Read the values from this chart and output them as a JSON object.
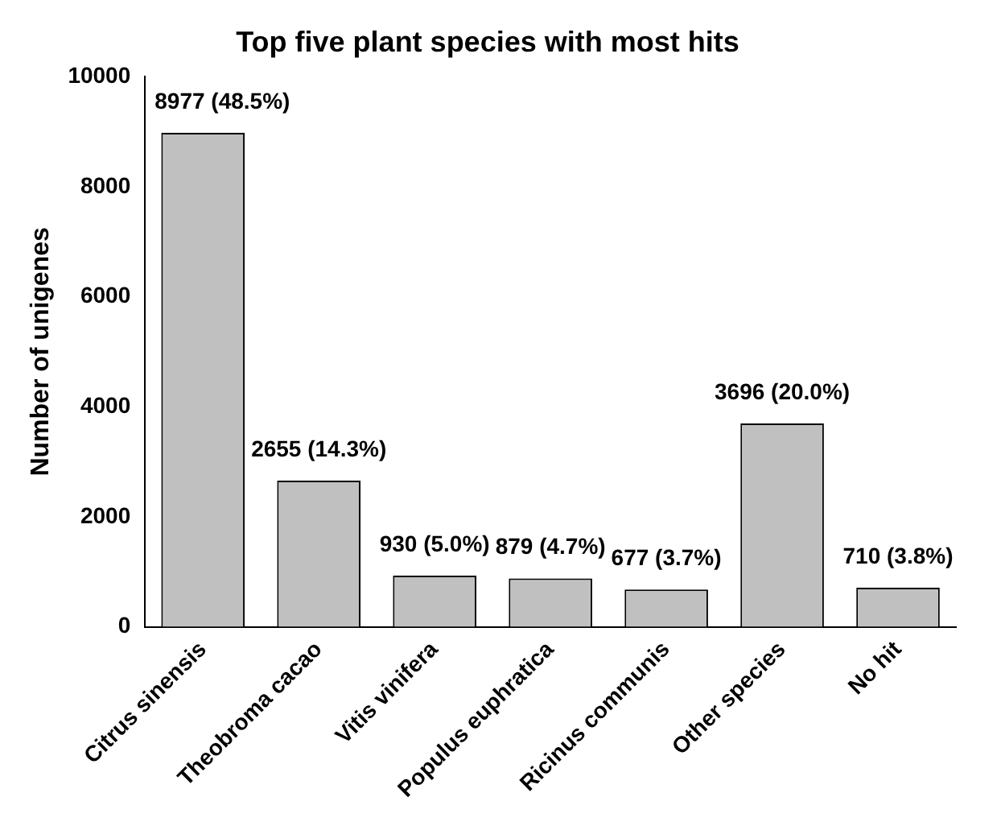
{
  "chart_data": {
    "type": "bar",
    "title": "Top five plant species with most hits",
    "ylabel": "Number of unigenes",
    "categories": [
      "Citrus sinensis",
      "Theobroma cacao",
      "Vitis vinifera",
      "Populus euphratica",
      "Ricinus communis",
      "Other species",
      "No hit"
    ],
    "values": [
      8977,
      2655,
      930,
      879,
      677,
      3696,
      710
    ],
    "value_labels": [
      "8977 (48.5%)",
      "2655 (14.3%)",
      "930 (5.0%)",
      "879 (4.7%)",
      "677 (3.7%)",
      "3696 (20.0%)",
      "710 (3.8%)"
    ],
    "color": "#c0c0c0",
    "ylim": [
      0,
      10000
    ],
    "yticks": [
      0,
      2000,
      4000,
      6000,
      8000,
      10000
    ]
  }
}
